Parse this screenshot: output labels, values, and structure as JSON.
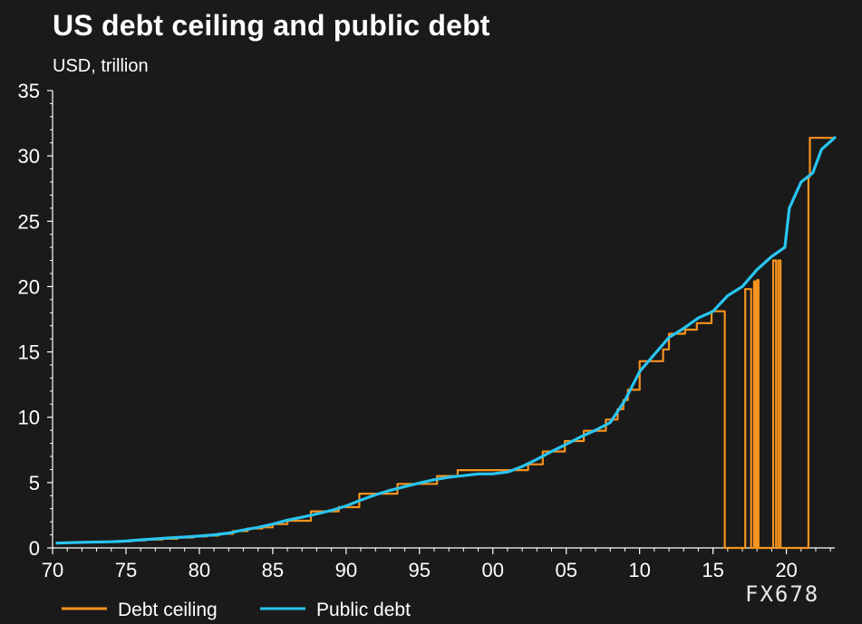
{
  "chart_data": {
    "type": "line",
    "title": "US debt ceiling and public debt",
    "subtitle": "USD, trillion",
    "xlabel": "",
    "ylabel": "",
    "xlim": [
      1970,
      2023.3
    ],
    "ylim": [
      0,
      35
    ],
    "x_tick_values": [
      1970,
      1975,
      1980,
      1985,
      1990,
      1995,
      2000,
      2005,
      2010,
      2015,
      2020
    ],
    "x_tick_labels": [
      "70",
      "75",
      "80",
      "85",
      "90",
      "95",
      "00",
      "05",
      "10",
      "15",
      "20"
    ],
    "y_ticks": [
      0,
      5,
      10,
      15,
      20,
      25,
      30,
      35
    ],
    "grid": false,
    "legend_position": "bottom-left",
    "series": [
      {
        "name": "Debt ceiling",
        "color": "#f7931e",
        "step": true,
        "points": [
          [
            1970.3,
            0.38
          ],
          [
            1971.2,
            0.43
          ],
          [
            1972.3,
            0.45
          ],
          [
            1973.5,
            0.47
          ],
          [
            1974.5,
            0.5
          ],
          [
            1975.3,
            0.58
          ],
          [
            1976.3,
            0.64
          ],
          [
            1977.5,
            0.7
          ],
          [
            1978.5,
            0.8
          ],
          [
            1979.6,
            0.88
          ],
          [
            1980.5,
            0.94
          ],
          [
            1981.3,
            1.08
          ],
          [
            1982.3,
            1.29
          ],
          [
            1983.3,
            1.49
          ],
          [
            1984.3,
            1.57
          ],
          [
            1985.0,
            1.82
          ],
          [
            1986.0,
            2.08
          ],
          [
            1987.6,
            2.8
          ],
          [
            1989.5,
            3.12
          ],
          [
            1990.9,
            4.15
          ],
          [
            1993.5,
            4.9
          ],
          [
            1996.2,
            5.5
          ],
          [
            1997.6,
            5.95
          ],
          [
            2002.4,
            6.4
          ],
          [
            2003.4,
            7.38
          ],
          [
            2004.9,
            8.18
          ],
          [
            2006.2,
            8.97
          ],
          [
            2007.7,
            9.82
          ],
          [
            2008.5,
            10.62
          ],
          [
            2008.9,
            11.32
          ],
          [
            2009.2,
            12.1
          ],
          [
            2010.0,
            14.29
          ],
          [
            2011.6,
            15.19
          ],
          [
            2012.0,
            16.39
          ],
          [
            2013.1,
            16.7
          ],
          [
            2013.9,
            17.2
          ],
          [
            2014.9,
            18.11
          ],
          [
            2015.8,
            0
          ],
          [
            2017.2,
            19.81
          ],
          [
            2017.6,
            0
          ],
          [
            2017.8,
            20.4
          ],
          [
            2017.9,
            0
          ],
          [
            2018.0,
            20.5
          ],
          [
            2018.1,
            0
          ],
          [
            2019.1,
            22.0
          ],
          [
            2019.3,
            0
          ],
          [
            2019.45,
            22.0
          ],
          [
            2019.6,
            0
          ],
          [
            2021.5,
            28.4
          ],
          [
            2021.6,
            31.38
          ],
          [
            2023.3,
            31.38
          ]
        ]
      },
      {
        "name": "Public debt",
        "color": "#29c5f2",
        "step": false,
        "points": [
          [
            1970.3,
            0.37
          ],
          [
            1972,
            0.43
          ],
          [
            1974,
            0.47
          ],
          [
            1975,
            0.53
          ],
          [
            1976,
            0.62
          ],
          [
            1977,
            0.69
          ],
          [
            1978,
            0.77
          ],
          [
            1979,
            0.83
          ],
          [
            1980,
            0.91
          ],
          [
            1981,
            1.0
          ],
          [
            1982,
            1.14
          ],
          [
            1983,
            1.37
          ],
          [
            1984,
            1.57
          ],
          [
            1985,
            1.82
          ],
          [
            1986,
            2.13
          ],
          [
            1987,
            2.35
          ],
          [
            1988,
            2.6
          ],
          [
            1989,
            2.87
          ],
          [
            1990,
            3.21
          ],
          [
            1991,
            3.66
          ],
          [
            1992,
            4.06
          ],
          [
            1993,
            4.41
          ],
          [
            1994,
            4.69
          ],
          [
            1995,
            4.97
          ],
          [
            1996,
            5.22
          ],
          [
            1997,
            5.41
          ],
          [
            1998,
            5.53
          ],
          [
            1999,
            5.66
          ],
          [
            2000,
            5.67
          ],
          [
            2001,
            5.81
          ],
          [
            2002,
            6.23
          ],
          [
            2003,
            6.78
          ],
          [
            2004,
            7.38
          ],
          [
            2005,
            7.93
          ],
          [
            2006,
            8.51
          ],
          [
            2007,
            9.01
          ],
          [
            2008,
            9.6
          ],
          [
            2009,
            11.3
          ],
          [
            2010,
            13.5
          ],
          [
            2011,
            14.8
          ],
          [
            2012,
            16.1
          ],
          [
            2013,
            16.8
          ],
          [
            2014,
            17.6
          ],
          [
            2015,
            18.1
          ],
          [
            2016,
            19.3
          ],
          [
            2017,
            20.0
          ],
          [
            2018,
            21.3
          ],
          [
            2019,
            22.3
          ],
          [
            2019.9,
            23.0
          ],
          [
            2020.2,
            26.0
          ],
          [
            2021,
            28.0
          ],
          [
            2021.8,
            28.7
          ],
          [
            2022.4,
            30.5
          ],
          [
            2023.3,
            31.4
          ]
        ]
      }
    ]
  },
  "watermark": "FX678"
}
